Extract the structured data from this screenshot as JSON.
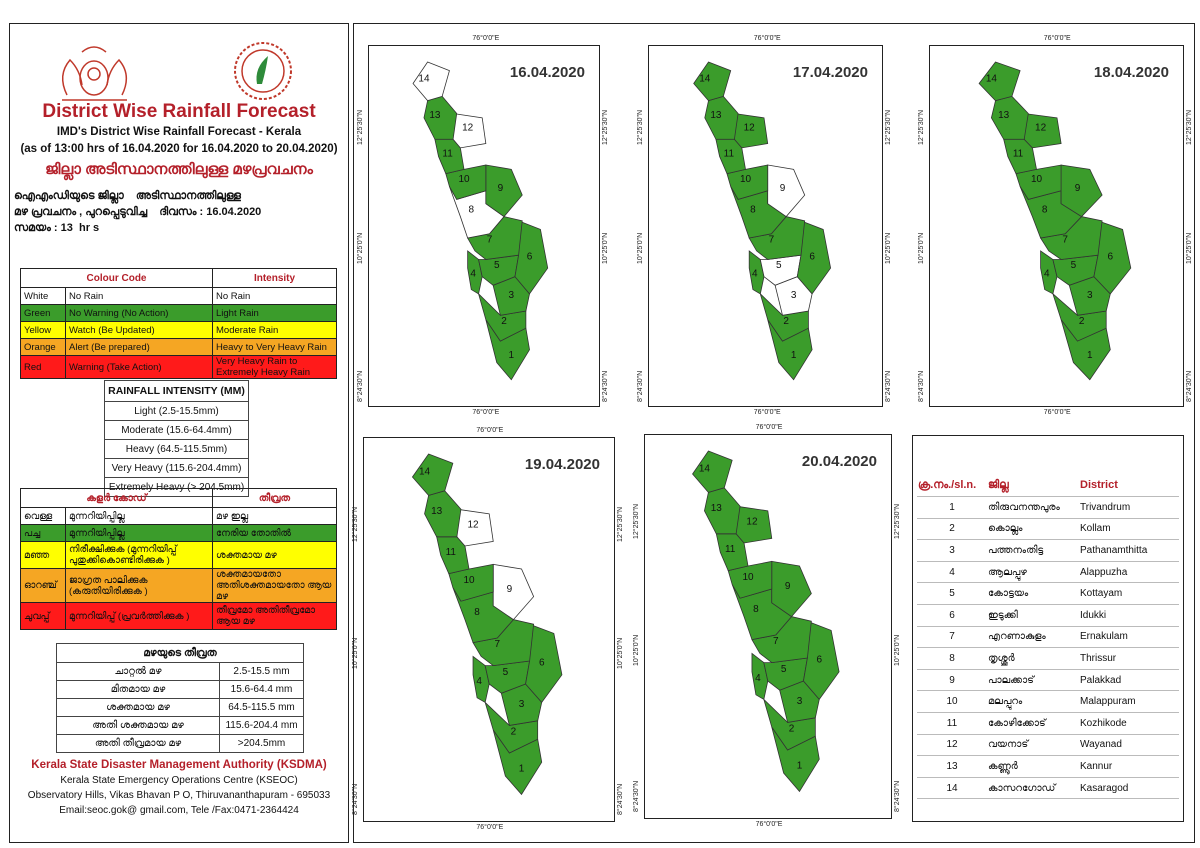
{
  "colors": {
    "green": "#3b9c2b",
    "yellow": "#ffff00",
    "orange": "#f5a623",
    "red": "#ff1a1a",
    "accent": "#b4202a"
  },
  "header": {
    "title": "District Wise Rainfall Forecast",
    "subtitle": "IMD's District Wise Rainfall Forecast - Kerala",
    "period": "(as of 13:00 hrs of 16.04.2020  for 16.04.2020  to 20.04.2020)",
    "title_ml": "ജില്ലാ അടിസ്ഥാനത്തിലുള്ള മഴപ്രവചനം"
  },
  "info": {
    "line1": "ഐഎംഡിയുടെ ജില്ലാ    അടിസ്ഥാനത്തിലുള്ള",
    "line2": "മഴ പ്രവചനം , പുറപ്പെടുവിച്ച    ദിവസം : 16.04.2020",
    "line3": "സമയം : 13  hr s"
  },
  "colour_code": {
    "headers": [
      "Colour Code",
      "Intensity"
    ],
    "rows": [
      {
        "color": "White",
        "meaning": "No Rain",
        "intensity": "No Rain",
        "bg": "#ffffff"
      },
      {
        "color": "Green",
        "meaning": "No Warning (No Action)",
        "intensity": "Light Rain",
        "bg": "#3b9c2b"
      },
      {
        "color": "Yellow",
        "meaning": "Watch (Be Updated)",
        "intensity": "Moderate Rain",
        "bg": "#ffff00"
      },
      {
        "color": "Orange",
        "meaning": "Alert (Be prepared)",
        "intensity": "Heavy to Very Heavy Rain",
        "bg": "#f5a623"
      },
      {
        "color": "Red",
        "meaning": "Warning (Take Action)",
        "intensity": "Very Heavy Rain to Extremely Heavy Rain",
        "bg": "#ff1a1a"
      }
    ]
  },
  "rain_intensity": {
    "header": "RAINFALL INTENSITY (MM)",
    "rows": [
      "Light (2.5-15.5mm)",
      "Moderate (15.6-64.4mm)",
      "Heavy (64.5-115.5mm)",
      "Very Heavy (115.6-204.4mm)",
      "Extremely Heavy (> 204.5mm)"
    ]
  },
  "colour_code_ml": {
    "headers": [
      "കളർ കോഡ്",
      "തീവ്രത"
    ],
    "rows": [
      {
        "color": "വെള്ള",
        "meaning": "മുന്നറിയിപ്പില്ല",
        "intensity": "മഴ ഇല്ല",
        "bg": "#ffffff"
      },
      {
        "color": "പച്ച",
        "meaning": "മുന്നറിയിപ്പില്ല",
        "intensity": "നേരിയ തോതിൽ",
        "bg": "#3b9c2b"
      },
      {
        "color": "മഞ്ഞ",
        "meaning": "നിരീക്ഷിക്കുക (മുന്നറിയിപ്പ് പുതുക്കികൊണ്ടിരിക്കുക )",
        "intensity": "ശക്തമായ മഴ",
        "bg": "#ffff00"
      },
      {
        "color": "ഓറഞ്ച്",
        "meaning": "ജാഗ്രത പാലിക്കുക (കരുതിയിരിക്കുക )",
        "intensity": "ശക്തമായതോ അതിശക്തമായതോ ആയ മഴ",
        "bg": "#f5a623"
      },
      {
        "color": "ചുവപ്പ്",
        "meaning": "മുന്നറിയിപ്പ് (പ്രവർത്തിക്കുക )",
        "intensity": "തീവ്രമോ അതിതീവ്രമോ ആയ മഴ",
        "bg": "#ff1a1a"
      }
    ]
  },
  "rain_intensity_ml": {
    "header": "മഴയുടെ തീവ്രത",
    "rows": [
      {
        "label": "ചാറ്റൽ മഴ",
        "value": "2.5-15.5 mm"
      },
      {
        "label": "മിതമായ മഴ",
        "value": "15.6-64.4 mm"
      },
      {
        "label": "ശക്തമായ മഴ",
        "value": "64.5-115.5 mm"
      },
      {
        "label": "അതി ശക്തമായ മഴ",
        "value": "115.6-204.4 mm"
      },
      {
        "label": "അതി തീവ്രമായ മഴ",
        "value": ">204.5mm"
      }
    ]
  },
  "footer": {
    "org": "Kerala State Disaster Management Authority (KSDMA)",
    "line1": "Kerala State Emergency Operations Centre (KSEOC)",
    "line2": "Observatory Hills, Vikas Bhavan P O, Thiruvananthapuram - 695033",
    "line3": "Email:seoc.gok@ gmail.com, Tele /Fax:0471-2364424"
  },
  "axis_labels": {
    "lon": "76°0'0\"E",
    "lat_top": "12°25'30\"N",
    "lat_mid": "10°25'0\"N",
    "lat_bot": "8°24'30\"N"
  },
  "maps": [
    {
      "date": "16.04.2020",
      "white": [
        14,
        12,
        8
      ],
      "districts": [
        1,
        2,
        3,
        4,
        5,
        6,
        7,
        8,
        9,
        10,
        11,
        12,
        13,
        14
      ]
    },
    {
      "date": "17.04.2020",
      "white": [
        9,
        5,
        3
      ],
      "districts": [
        1,
        2,
        3,
        4,
        5,
        6,
        7,
        8,
        9,
        10,
        11,
        12,
        13,
        14
      ]
    },
    {
      "date": "18.04.2020",
      "white": [],
      "districts": [
        1,
        2,
        3,
        4,
        5,
        6,
        7,
        8,
        9,
        10,
        11,
        12,
        13,
        14
      ]
    },
    {
      "date": "19.04.2020",
      "white": [
        12,
        9
      ],
      "districts": [
        1,
        2,
        3,
        4,
        5,
        6,
        7,
        8,
        9,
        10,
        11,
        12,
        13,
        14
      ]
    },
    {
      "date": "20.04.2020",
      "white": [],
      "districts": [
        1,
        2,
        3,
        4,
        5,
        6,
        7,
        8,
        9,
        10,
        11,
        12,
        13,
        14
      ]
    }
  ],
  "district_table": {
    "headers": [
      "ക്ര.നം./sl.n.",
      "ജില്ല",
      "District"
    ],
    "rows": [
      {
        "n": "1",
        "ml": "തിരുവനന്തപുരം",
        "en": "Trivandrum"
      },
      {
        "n": "2",
        "ml": "കൊല്ലം",
        "en": "Kollam"
      },
      {
        "n": "3",
        "ml": "പത്തനംതിട്ട",
        "en": "Pathanamthitta"
      },
      {
        "n": "4",
        "ml": "ആലപ്പുഴ",
        "en": "Alappuzha"
      },
      {
        "n": "5",
        "ml": "കോട്ടയം",
        "en": "Kottayam"
      },
      {
        "n": "6",
        "ml": "ഇടുക്കി",
        "en": "Idukki"
      },
      {
        "n": "7",
        "ml": "എറണാകുളം",
        "en": "Ernakulam"
      },
      {
        "n": "8",
        "ml": "തൃശ്ശൂർ",
        "en": "Thrissur"
      },
      {
        "n": "9",
        "ml": "പാലക്കാട്",
        "en": "Palakkad"
      },
      {
        "n": "10",
        "ml": "മലപ്പുറം",
        "en": "Malappuram"
      },
      {
        "n": "11",
        "ml": "കോഴിക്കോട്",
        "en": "Kozhikode"
      },
      {
        "n": "12",
        "ml": "വയനാട്",
        "en": "Wayanad"
      },
      {
        "n": "13",
        "ml": "കണ്ണൂർ",
        "en": "Kannur"
      },
      {
        "n": "14",
        "ml": "കാസറഗോഡ്",
        "en": "Kasaragod"
      }
    ]
  }
}
